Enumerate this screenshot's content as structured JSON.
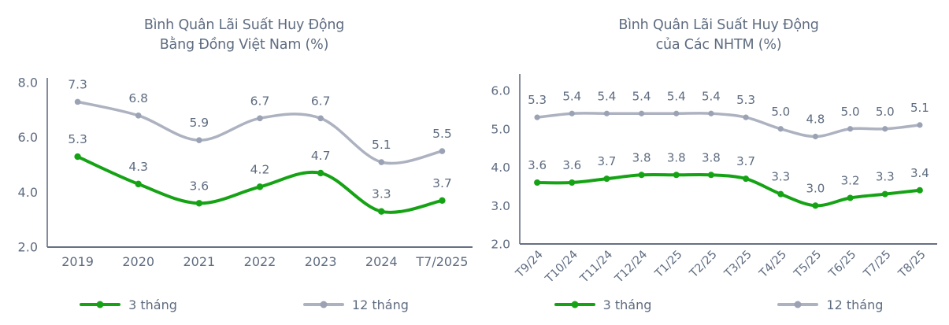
{
  "colors": {
    "green_line": "#15a315",
    "green_marker": "#15a315",
    "gray_line": "#adb2c0",
    "gray_marker": "#9aa2b4",
    "text": "#5e6c80",
    "axis": "#667084",
    "background": "#ffffff"
  },
  "chart_data": [
    {
      "type": "line",
      "title_line1": "Bình Quân Lãi Suất Huy Động",
      "title_line2": "Bằng Đồng Việt Nam (%)",
      "categories": [
        "2019",
        "2020",
        "2021",
        "2022",
        "2023",
        "2024",
        "T7/2025"
      ],
      "series": [
        {
          "name": "3 tháng",
          "color": "#15a315",
          "values": [
            5.3,
            4.3,
            3.6,
            4.2,
            4.7,
            3.3,
            3.7
          ]
        },
        {
          "name": "12 tháng",
          "color": "#adb2c0",
          "values": [
            7.3,
            6.8,
            5.9,
            6.7,
            6.7,
            5.1,
            5.5
          ]
        }
      ],
      "ylim": [
        2.0,
        8.0
      ],
      "yticks": [
        8.0,
        6.0,
        4.0,
        2.0
      ],
      "grid": false,
      "legend_position": "bottom",
      "x_label_rotation": 0,
      "data_labels": true
    },
    {
      "type": "line",
      "title_line1": "Bình Quân Lãi Suất Huy Động",
      "title_line2": "của Các NHTM (%)",
      "categories": [
        "T9/24",
        "T10/24",
        "T11/24",
        "T12/24",
        "T1/25",
        "T2/25",
        "T3/25",
        "T4/25",
        "T5/25",
        "T6/25",
        "T7/25",
        "T8/25"
      ],
      "series": [
        {
          "name": "3 tháng",
          "color": "#15a315",
          "values": [
            3.6,
            3.6,
            3.7,
            3.8,
            3.8,
            3.8,
            3.7,
            3.3,
            3.0,
            3.2,
            3.3,
            3.4
          ]
        },
        {
          "name": "12 tháng",
          "color": "#adb2c0",
          "values": [
            5.3,
            5.4,
            5.4,
            5.4,
            5.4,
            5.4,
            5.3,
            5.0,
            4.8,
            5.0,
            5.0,
            5.1
          ]
        }
      ],
      "ylim": [
        2.0,
        6.0
      ],
      "yticks": [
        6.0,
        5.0,
        4.0,
        3.0,
        2.0
      ],
      "grid": false,
      "legend_position": "bottom",
      "x_label_rotation": -45,
      "data_labels": true
    }
  ]
}
